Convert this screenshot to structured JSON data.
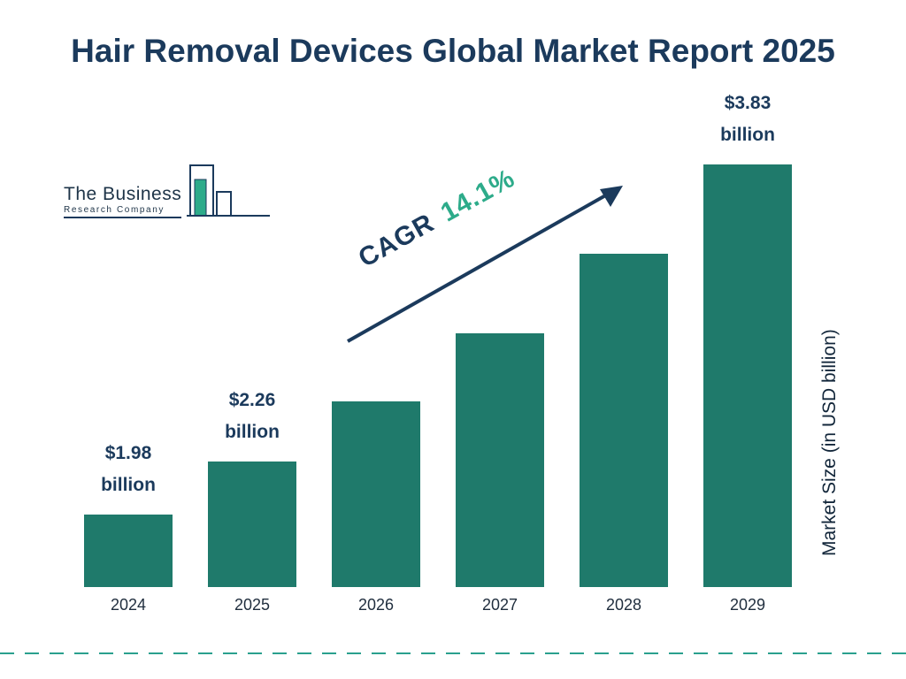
{
  "title": "Hair Removal Devices Global Market Report 2025",
  "logo": {
    "line1": "The Business",
    "line2": "Research Company"
  },
  "cagr": {
    "prefix": "CAGR",
    "value": "14.1%"
  },
  "ylabel": "Market Size (in USD billion)",
  "chart_data": {
    "type": "bar",
    "categories": [
      "2024",
      "2025",
      "2026",
      "2027",
      "2028",
      "2029"
    ],
    "values": [
      1.98,
      2.26,
      2.58,
      2.94,
      3.36,
      3.83
    ],
    "value_labels": {
      "2024": [
        "$1.98",
        "billion"
      ],
      "2025": [
        "$2.26",
        "billion"
      ],
      "2029": [
        "$3.83",
        "billion"
      ]
    },
    "title": "Hair Removal Devices Global Market Report 2025",
    "xlabel": "",
    "ylabel": "Market Size (in USD billion)",
    "annotation": "CAGR 14.1%",
    "legend": false,
    "grid": false,
    "baseline": "non-zero",
    "colors": {
      "bar": "#1f7a6b",
      "navy": "#1b3a5c",
      "cagr_green": "#2dab8a",
      "dashed": "#2aa08e"
    }
  }
}
